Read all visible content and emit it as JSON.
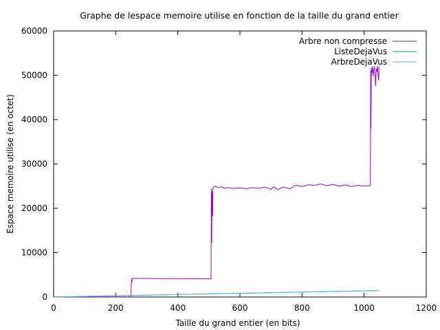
{
  "chart_data": {
    "type": "line",
    "title": "Graphe de lespace memoire utilise en fonction de la taille du grand entier",
    "xlabel": "Taille du grand entier (en bits)",
    "ylabel": "Espace memoire utilise (en octet)",
    "xlim": [
      0,
      1200
    ],
    "ylim": [
      0,
      60000
    ],
    "xticks": [
      0,
      200,
      400,
      600,
      800,
      1000,
      1200
    ],
    "yticks": [
      0,
      10000,
      20000,
      30000,
      40000,
      50000,
      60000
    ],
    "grid": false,
    "legend_position": "top-right",
    "series": [
      {
        "name": "Arbre non compresse",
        "color": "#9400d3",
        "points": [
          [
            0,
            30
          ],
          [
            249,
            30
          ],
          [
            250,
            2500
          ],
          [
            251,
            4000
          ],
          [
            252,
            3300
          ],
          [
            253,
            4200
          ],
          [
            260,
            4200
          ],
          [
            300,
            4180
          ],
          [
            350,
            4160
          ],
          [
            400,
            4140
          ],
          [
            450,
            4120
          ],
          [
            500,
            4100
          ],
          [
            507,
            4100
          ],
          [
            508,
            24400
          ],
          [
            509,
            12200
          ],
          [
            510,
            23800
          ],
          [
            511,
            20300
          ],
          [
            512,
            18200
          ],
          [
            513,
            24600
          ],
          [
            520,
            25000
          ],
          [
            530,
            24700
          ],
          [
            540,
            24900
          ],
          [
            550,
            24500
          ],
          [
            560,
            24700
          ],
          [
            580,
            24500
          ],
          [
            600,
            24600
          ],
          [
            620,
            24400
          ],
          [
            640,
            24700
          ],
          [
            660,
            24500
          ],
          [
            680,
            24800
          ],
          [
            700,
            24300
          ],
          [
            710,
            24900
          ],
          [
            720,
            24200
          ],
          [
            740,
            24800
          ],
          [
            760,
            24400
          ],
          [
            780,
            25200
          ],
          [
            800,
            24900
          ],
          [
            820,
            25300
          ],
          [
            840,
            25200
          ],
          [
            860,
            25500
          ],
          [
            880,
            25100
          ],
          [
            900,
            25400
          ],
          [
            920,
            25000
          ],
          [
            940,
            25300
          ],
          [
            960,
            24900
          ],
          [
            980,
            25200
          ],
          [
            1000,
            25000
          ],
          [
            1015,
            25100
          ],
          [
            1020,
            25200
          ],
          [
            1021,
            51000
          ],
          [
            1022,
            38000
          ],
          [
            1023,
            51700
          ],
          [
            1025,
            50500
          ],
          [
            1027,
            52000
          ],
          [
            1029,
            49800
          ],
          [
            1031,
            51200
          ],
          [
            1033,
            52000
          ],
          [
            1035,
            50300
          ],
          [
            1037,
            47600
          ],
          [
            1039,
            51500
          ],
          [
            1041,
            50800
          ],
          [
            1043,
            52000
          ],
          [
            1045,
            49800
          ],
          [
            1047,
            48800
          ],
          [
            1048,
            52000
          ]
        ]
      },
      {
        "name": "ListeDejaVus",
        "color": "#009e73",
        "points": [
          [
            0,
            0
          ],
          [
            1048,
            1450
          ]
        ]
      },
      {
        "name": "ArbreDejaVus",
        "color": "#56b4e9",
        "points": [
          [
            0,
            20
          ],
          [
            1048,
            1480
          ]
        ]
      }
    ]
  }
}
